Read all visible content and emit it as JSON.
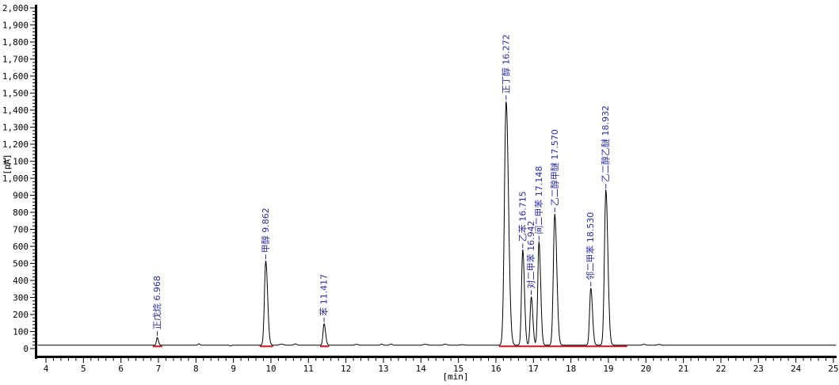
{
  "chart_data": {
    "type": "line",
    "title": "",
    "xlabel": "[min]",
    "ylabel": "[pA]",
    "x_range": [
      4,
      25
    ],
    "y_range": [
      0,
      2000
    ],
    "x_major_tick": 1,
    "x_minor_tick": 0.2,
    "y_major_tick": 100,
    "y_minor_tick": 20,
    "grid": "off",
    "legend": "none",
    "baseline_pA": 20,
    "x_tick_labels": [
      "4",
      "5",
      "6",
      "7",
      "8",
      "9",
      "10",
      "11",
      "12",
      "13",
      "14",
      "15",
      "16",
      "17",
      "18",
      "19",
      "20",
      "21",
      "22",
      "23",
      "24",
      "25"
    ],
    "y_tick_labels": [
      "0",
      "100",
      "200",
      "300",
      "400",
      "500",
      "600",
      "700",
      "800",
      "900",
      "1,000",
      "1,100",
      "1,200",
      "1,300",
      "1,400",
      "1,500",
      "1,600",
      "1,700",
      "1,800",
      "1,900",
      "2,000"
    ],
    "peaks": [
      {
        "name": "正戊烷",
        "rt": 6.968,
        "apex_pA": 65,
        "sigma": 0.022
      },
      {
        "name": "甲醇",
        "rt": 9.862,
        "apex_pA": 515,
        "sigma": 0.035
      },
      {
        "name": "苯",
        "rt": 11.417,
        "apex_pA": 145,
        "sigma": 0.028
      },
      {
        "name": "正丁醇",
        "rt": 16.272,
        "apex_pA": 1450,
        "sigma": 0.045
      },
      {
        "name": "乙苯",
        "rt": 16.715,
        "apex_pA": 580,
        "sigma": 0.032
      },
      {
        "name": "对二甲苯",
        "rt": 16.942,
        "apex_pA": 305,
        "sigma": 0.03
      },
      {
        "name": "间二甲苯",
        "rt": 17.148,
        "apex_pA": 625,
        "sigma": 0.032
      },
      {
        "name": "乙二醇甲醚",
        "rt": 17.57,
        "apex_pA": 790,
        "sigma": 0.038
      },
      {
        "name": "邻二甲苯",
        "rt": 18.53,
        "apex_pA": 355,
        "sigma": 0.032
      },
      {
        "name": "乙二醇乙醚",
        "rt": 18.932,
        "apex_pA": 930,
        "sigma": 0.038
      }
    ],
    "noise_bumps": [
      [
        8.08,
        8,
        0.025
      ],
      [
        8.92,
        -4,
        0.02
      ],
      [
        10.28,
        6,
        0.05
      ],
      [
        10.65,
        7,
        0.04
      ],
      [
        12.28,
        5,
        0.04
      ],
      [
        12.95,
        6,
        0.03
      ],
      [
        13.2,
        7,
        0.03
      ],
      [
        14.12,
        5,
        0.05
      ],
      [
        14.65,
        6,
        0.04
      ],
      [
        15.1,
        3,
        0.05
      ],
      [
        19.95,
        5,
        0.04
      ],
      [
        20.35,
        4,
        0.04
      ]
    ],
    "integration_segments": [
      [
        6.85,
        7.1
      ],
      [
        9.7,
        10.06
      ],
      [
        11.31,
        11.55
      ],
      [
        16.08,
        19.5
      ]
    ],
    "colors": {
      "trace": "#000000",
      "axis": "#000000",
      "peak_label": "#2b2ba0",
      "integration": "#cc2233",
      "background": "#ffffff"
    }
  }
}
